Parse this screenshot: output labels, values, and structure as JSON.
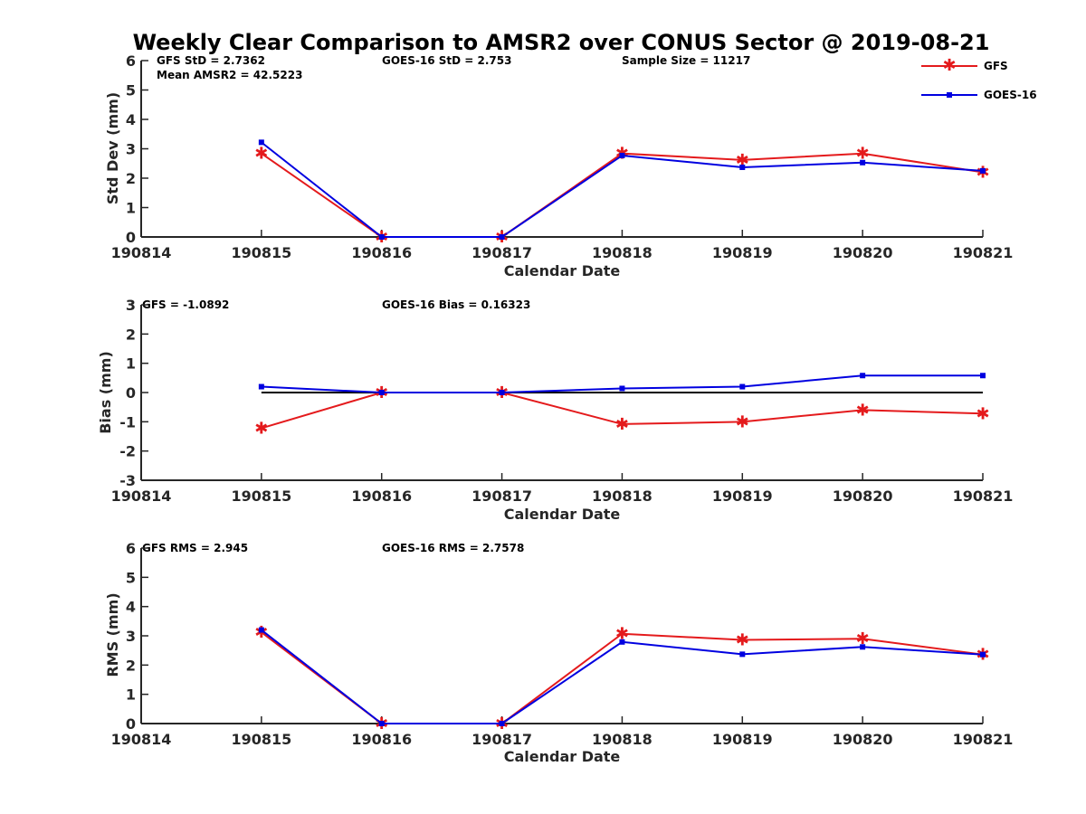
{
  "title": "Weekly Clear Comparison to AMSR2 over CONUS Sector @ 2019-08-21",
  "colors": {
    "gfs": "#e41a1c",
    "goes": "#0000e0",
    "axis": "#262626",
    "zero_line": "#000000"
  },
  "legend": {
    "placement": "top-right",
    "items": [
      {
        "label": "GFS",
        "marker": "asterisk",
        "color_key": "gfs"
      },
      {
        "label": "GOES-16",
        "marker": "square",
        "color_key": "goes"
      }
    ]
  },
  "chart_data": [
    {
      "type": "line",
      "id": "stddev",
      "xlabel": "Calendar Date",
      "ylabel": "Std Dev (mm)",
      "categories": [
        "190814",
        "190815",
        "190816",
        "190817",
        "190818",
        "190819",
        "190820",
        "190821"
      ],
      "ylim": [
        0,
        6
      ],
      "yticks": [
        "0",
        "1",
        "2",
        "3",
        "4",
        "5",
        "6"
      ],
      "series": [
        {
          "name": "GFS",
          "values": [
            null,
            2.84,
            0.0,
            0.0,
            2.84,
            2.62,
            2.84,
            2.2
          ]
        },
        {
          "name": "GOES-16",
          "values": [
            null,
            3.22,
            0.0,
            0.0,
            2.77,
            2.37,
            2.53,
            2.25
          ]
        }
      ],
      "annotations": [
        "GFS StD = 2.7362",
        "GOES-16 StD = 2.753",
        "Sample Size = 11217",
        "Mean AMSR2 = 42.5223"
      ]
    },
    {
      "type": "line",
      "id": "bias",
      "xlabel": "Calendar Date",
      "ylabel": "Bias (mm)",
      "categories": [
        "190814",
        "190815",
        "190816",
        "190817",
        "190818",
        "190819",
        "190820",
        "190821"
      ],
      "ylim": [
        -3,
        3
      ],
      "yticks": [
        "-3",
        "-2",
        "-1",
        "0",
        "1",
        "2",
        "3"
      ],
      "zero_line": true,
      "series": [
        {
          "name": "GFS",
          "values": [
            null,
            -1.22,
            0.0,
            0.0,
            -1.08,
            -1.0,
            -0.6,
            -0.72
          ]
        },
        {
          "name": "GOES-16",
          "values": [
            null,
            0.2,
            0.0,
            0.0,
            0.14,
            0.2,
            0.58,
            0.58
          ]
        }
      ],
      "annotations": [
        "GFS = -1.0892",
        "GOES-16 Bias  = 0.16323"
      ]
    },
    {
      "type": "line",
      "id": "rms",
      "xlabel": "Calendar Date",
      "ylabel": "RMS (mm)",
      "categories": [
        "190814",
        "190815",
        "190816",
        "190817",
        "190818",
        "190819",
        "190820",
        "190821"
      ],
      "ylim": [
        0,
        6
      ],
      "yticks": [
        "0",
        "1",
        "2",
        "3",
        "4",
        "5",
        "6"
      ],
      "series": [
        {
          "name": "GFS",
          "values": [
            null,
            3.12,
            0.0,
            0.0,
            3.07,
            2.86,
            2.9,
            2.36
          ]
        },
        {
          "name": "GOES-16",
          "values": [
            null,
            3.2,
            0.0,
            0.0,
            2.79,
            2.37,
            2.62,
            2.36
          ]
        }
      ],
      "annotations": [
        "GFS RMS = 2.945",
        "GOES-16 RMS = 2.7578"
      ]
    }
  ]
}
